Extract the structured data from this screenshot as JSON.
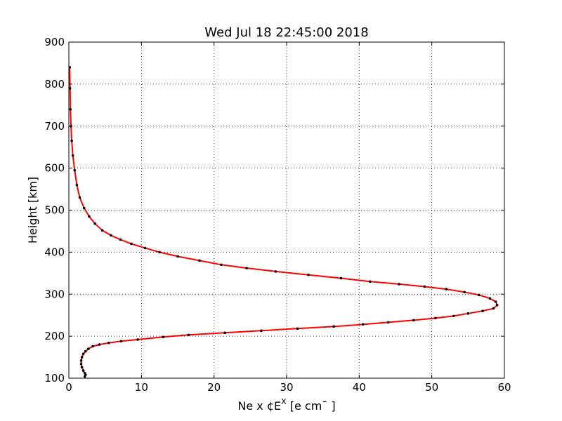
{
  "chart_data": {
    "type": "line",
    "title": "Wed Jul 18 22:45:00 2018",
    "xlabel_main": "Ne x ¢E",
    "xlabel_sup": "X",
    "xlabel_tail": " [e cm¯ ]",
    "ylabel": "Height [km]",
    "xlim": [
      0,
      60
    ],
    "ylim": [
      100,
      900
    ],
    "xticks": [
      "0",
      "10",
      "20",
      "30",
      "40",
      "50",
      "60"
    ],
    "yticks": [
      "100",
      "200",
      "300",
      "400",
      "500",
      "600",
      "700",
      "800",
      "900"
    ],
    "grid": true,
    "line_color": "#ff0000",
    "marker_color": "#000000",
    "series": [
      {
        "x": [
          2.2,
          2.3,
          2.2,
          2.0,
          1.8,
          1.7,
          1.7,
          1.8,
          2.0,
          2.3,
          2.7,
          3.3,
          4.2,
          5.5,
          7.2,
          9.5,
          13.0,
          16.5,
          21.5,
          26.5,
          31.5,
          36.5,
          40.5,
          44.0,
          47.5,
          50.5,
          53.0,
          55.0,
          57.0,
          58.5,
          59.0,
          58.8,
          58.0,
          56.5,
          54.5,
          52.0,
          49.0,
          45.5,
          41.5,
          37.5,
          33.0,
          28.5,
          24.5,
          21.0,
          18.0,
          15.0,
          12.5,
          10.5,
          8.6,
          7.1,
          5.8,
          4.6,
          3.6,
          2.8,
          2.1,
          1.5,
          1.1,
          0.8,
          0.55,
          0.4,
          0.3,
          0.22,
          0.16,
          0.12
        ],
        "y": [
          104,
          108,
          112,
          118,
          126,
          134,
          142,
          150,
          158,
          164,
          170,
          176,
          180,
          184,
          188,
          192,
          198,
          203,
          208,
          213,
          218,
          223,
          228,
          233,
          238,
          243,
          248,
          254,
          260,
          266,
          274,
          282,
          290,
          298,
          305,
          312,
          318,
          324,
          330,
          338,
          346,
          354,
          362,
          370,
          380,
          390,
          400,
          410,
          420,
          430,
          440,
          452,
          468,
          485,
          505,
          530,
          560,
          595,
          630,
          665,
          700,
          740,
          790,
          840
        ]
      }
    ]
  }
}
